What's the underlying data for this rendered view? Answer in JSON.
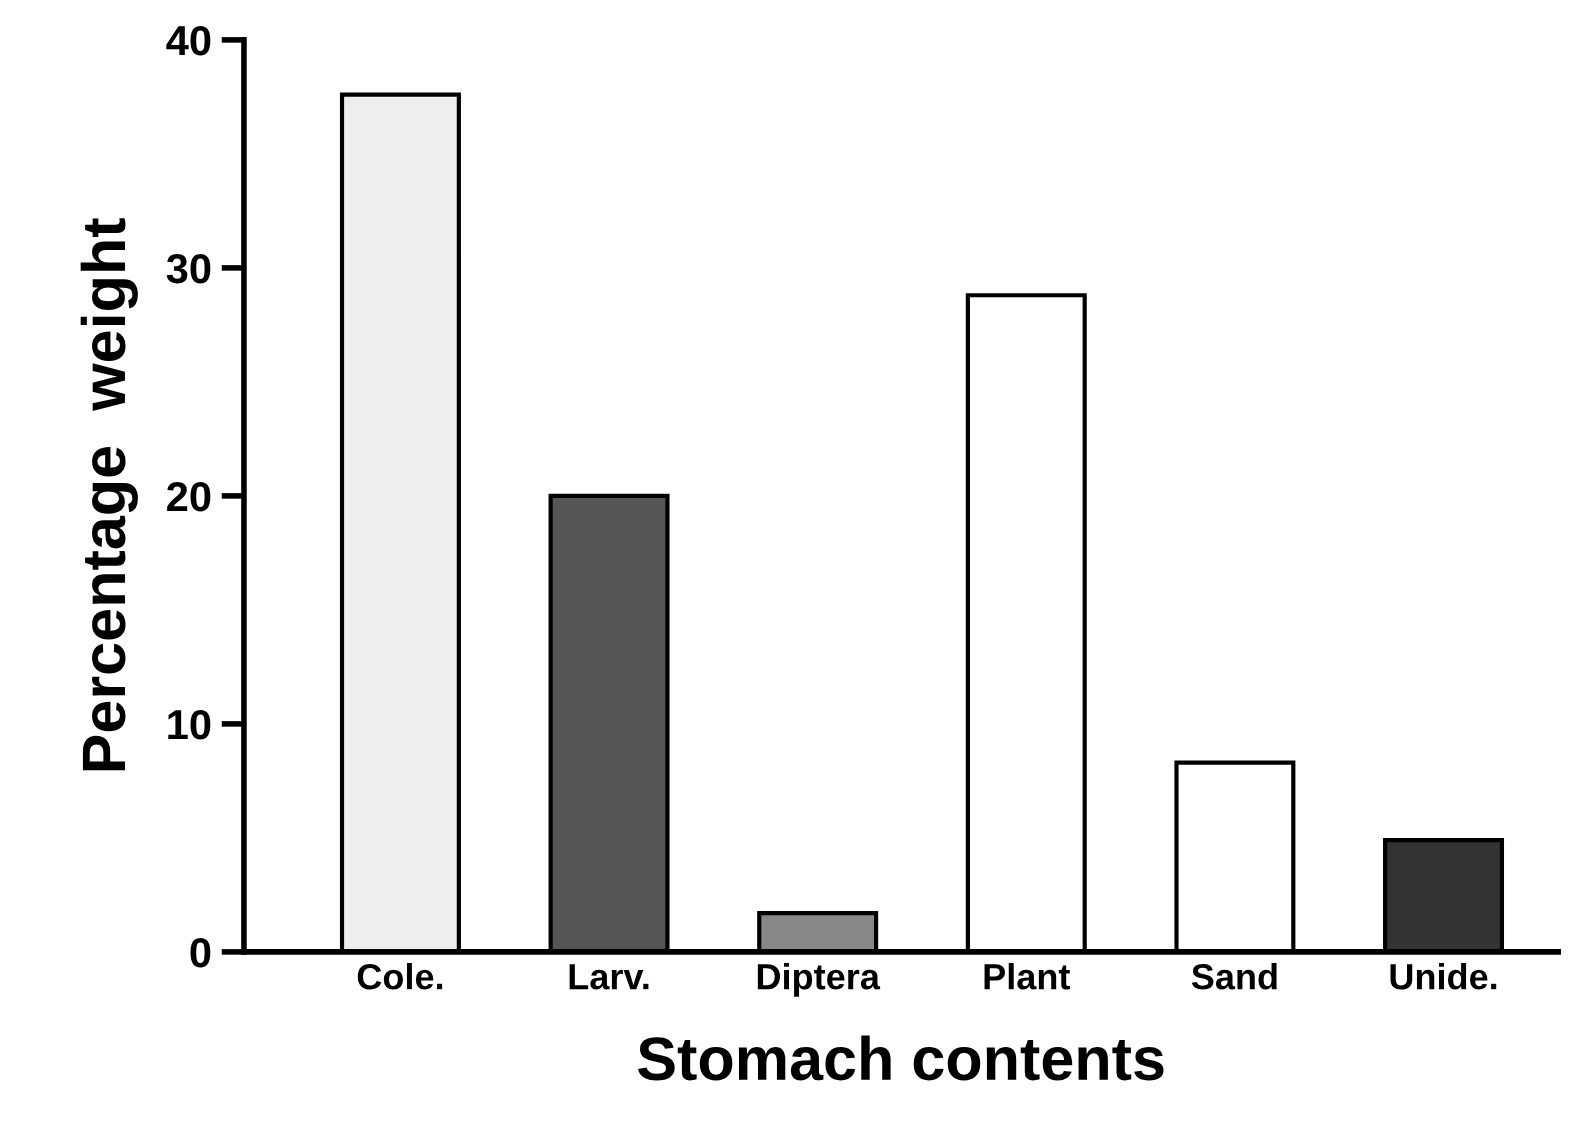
{
  "chart_data": {
    "type": "bar",
    "xlabel": "Stomach contents",
    "ylabel": "Percentage  weight",
    "categories": [
      "Cole.",
      "Larv.",
      "Diptera",
      "Plant",
      "Sand",
      "Unide."
    ],
    "values": [
      37.6,
      20.0,
      1.7,
      28.8,
      8.3,
      4.9
    ],
    "colors": [
      "#eeeeee",
      "#555555",
      "#888888",
      "#ffffff",
      "#ffffff",
      "#333333"
    ],
    "ylim": [
      0,
      40
    ],
    "yticks": [
      0,
      10,
      20,
      30,
      40
    ],
    "grid": false,
    "legend": false
  }
}
